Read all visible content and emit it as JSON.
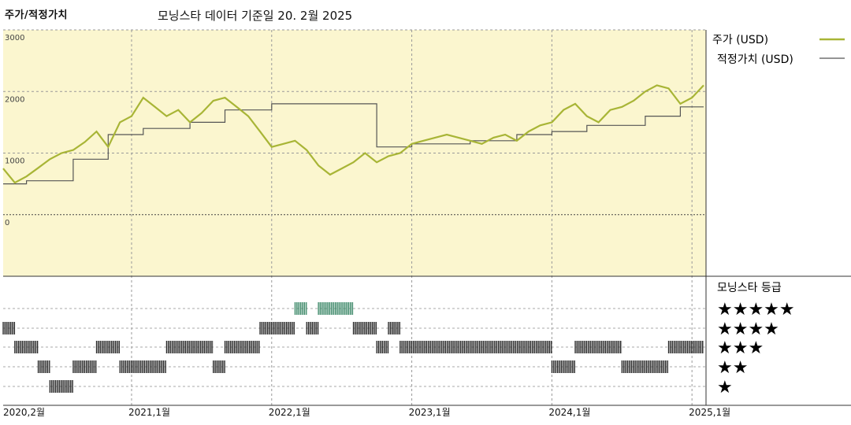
{
  "header": {
    "left_title": "주가/적정가치",
    "subtitle": "모닝스타 데이터 기준일 20. 2월 2025"
  },
  "legend": {
    "price_label": "주가 (USD)",
    "fair_label": "적정가치 (USD)",
    "rating_title": "모닝스타 등급",
    "stars": [
      "★★★★★",
      "★★★★",
      "★★★",
      "★★",
      "★"
    ]
  },
  "colors": {
    "price": "#a8b536",
    "fair": "#555555",
    "panel_bg": "#fbf6cf",
    "bar_dark": "#2a2a2a",
    "bar_green": "#3f8a6a"
  },
  "chart_data": [
    {
      "type": "line",
      "title": "",
      "xlabel": "",
      "ylabel": "",
      "ylim": [
        -1000,
        3000
      ],
      "yticks": [
        3000,
        2000,
        1000,
        0
      ],
      "xticks": [
        "2020,2월",
        "2021,1월",
        "2022,1월",
        "2023,1월",
        "2024,1월",
        "2025,1월"
      ],
      "x_range": [
        "2020-02",
        "2025-02"
      ],
      "grid": true,
      "legend_position": "right",
      "series": [
        {
          "name": "주가 (USD)",
          "x": [
            "2020-02",
            "2020-03",
            "2020-04",
            "2020-05",
            "2020-06",
            "2020-07",
            "2020-08",
            "2020-09",
            "2020-10",
            "2020-11",
            "2020-12",
            "2021-01",
            "2021-02",
            "2021-03",
            "2021-04",
            "2021-05",
            "2021-06",
            "2021-07",
            "2021-08",
            "2021-09",
            "2021-10",
            "2021-11",
            "2021-12",
            "2022-01",
            "2022-02",
            "2022-03",
            "2022-04",
            "2022-05",
            "2022-06",
            "2022-07",
            "2022-08",
            "2022-09",
            "2022-10",
            "2022-11",
            "2022-12",
            "2023-01",
            "2023-02",
            "2023-03",
            "2023-04",
            "2023-05",
            "2023-06",
            "2023-07",
            "2023-08",
            "2023-09",
            "2023-10",
            "2023-11",
            "2023-12",
            "2024-01",
            "2024-02",
            "2024-03",
            "2024-04",
            "2024-05",
            "2024-06",
            "2024-07",
            "2024-08",
            "2024-09",
            "2024-10",
            "2024-11",
            "2024-12",
            "2025-01",
            "2025-02"
          ],
          "values": [
            750,
            520,
            620,
            760,
            900,
            1000,
            1050,
            1180,
            1350,
            1100,
            1500,
            1600,
            1900,
            1750,
            1600,
            1700,
            1500,
            1650,
            1850,
            1900,
            1750,
            1600,
            1350,
            1100,
            1150,
            1200,
            1050,
            800,
            650,
            750,
            850,
            1000,
            850,
            950,
            1000,
            1150,
            1200,
            1250,
            1300,
            1250,
            1200,
            1150,
            1250,
            1300,
            1200,
            1350,
            1450,
            1500,
            1700,
            1800,
            1600,
            1500,
            1700,
            1750,
            1850,
            2000,
            2100,
            2050,
            1800,
            1900,
            2100
          ]
        },
        {
          "name": "적정가치 (USD)",
          "x": [
            "2020-02",
            "2020-04",
            "2020-08",
            "2020-11",
            "2021-02",
            "2021-06",
            "2021-09",
            "2022-01",
            "2022-05",
            "2022-10",
            "2023-01",
            "2023-06",
            "2023-10",
            "2024-01",
            "2024-04",
            "2024-09",
            "2024-12",
            "2025-02"
          ],
          "values": [
            500,
            550,
            900,
            1300,
            1400,
            1500,
            1700,
            1800,
            1800,
            1100,
            1150,
            1200,
            1300,
            1350,
            1450,
            1600,
            1750,
            1750
          ]
        }
      ]
    },
    {
      "type": "table",
      "title": "모닝스타 등급",
      "rows": [
        "★★★★★",
        "★★★★",
        "★★★",
        "★★",
        "★"
      ],
      "periods": [
        {
          "stars": 4,
          "from": "2020-02",
          "to": "2020-03"
        },
        {
          "stars": 3,
          "from": "2020-03",
          "to": "2020-05"
        },
        {
          "stars": 2,
          "from": "2020-05",
          "to": "2020-06"
        },
        {
          "stars": 1,
          "from": "2020-06",
          "to": "2020-08"
        },
        {
          "stars": 2,
          "from": "2020-08",
          "to": "2020-10"
        },
        {
          "stars": 3,
          "from": "2020-10",
          "to": "2020-12"
        },
        {
          "stars": 2,
          "from": "2020-12",
          "to": "2021-04"
        },
        {
          "stars": 3,
          "from": "2021-04",
          "to": "2021-08"
        },
        {
          "stars": 2,
          "from": "2021-08",
          "to": "2021-09"
        },
        {
          "stars": 3,
          "from": "2021-09",
          "to": "2021-12"
        },
        {
          "stars": 4,
          "from": "2021-12",
          "to": "2022-03"
        },
        {
          "stars": 5,
          "from": "2022-03",
          "to": "2022-04"
        },
        {
          "stars": 4,
          "from": "2022-04",
          "to": "2022-05"
        },
        {
          "stars": 5,
          "from": "2022-05",
          "to": "2022-08"
        },
        {
          "stars": 4,
          "from": "2022-08",
          "to": "2022-10"
        },
        {
          "stars": 3,
          "from": "2022-10",
          "to": "2022-11"
        },
        {
          "stars": 4,
          "from": "2022-11",
          "to": "2022-12"
        },
        {
          "stars": 3,
          "from": "2022-12",
          "to": "2024-01"
        },
        {
          "stars": 2,
          "from": "2024-01",
          "to": "2024-03"
        },
        {
          "stars": 3,
          "from": "2024-03",
          "to": "2024-07"
        },
        {
          "stars": 2,
          "from": "2024-07",
          "to": "2024-11"
        },
        {
          "stars": 3,
          "from": "2024-11",
          "to": "2025-02"
        }
      ]
    }
  ]
}
